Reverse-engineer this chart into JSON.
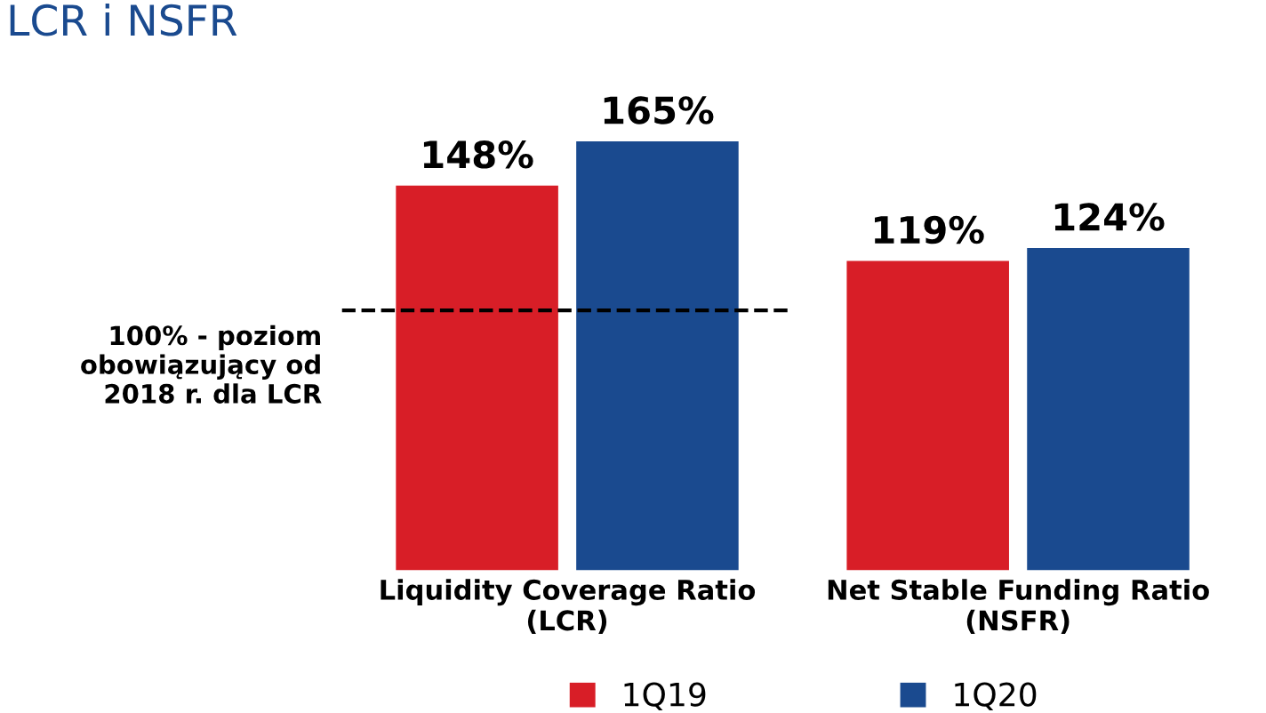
{
  "chart_data": {
    "type": "bar",
    "title": "LCR i NSFR",
    "categories": [
      "Liquidity Coverage Ratio\n(LCR)",
      "Net Stable Funding Ratio\n(NSFR)"
    ],
    "series": [
      {
        "name": "1Q19",
        "color": "#d81e27",
        "values": [
          148,
          119
        ],
        "value_labels": [
          "148%",
          "119%"
        ]
      },
      {
        "name": "1Q20",
        "color": "#1a4a8f",
        "values": [
          165,
          124
        ],
        "value_labels": [
          "165%",
          "124%"
        ]
      }
    ],
    "ref_lines": [
      {
        "axis": "y",
        "value": 100,
        "label": "100% - poziom\nobowiązujący od\n2018 r. dla LCR",
        "color": "#000000",
        "line_style": "dashed"
      }
    ],
    "legend": "bottom",
    "grid": false
  }
}
